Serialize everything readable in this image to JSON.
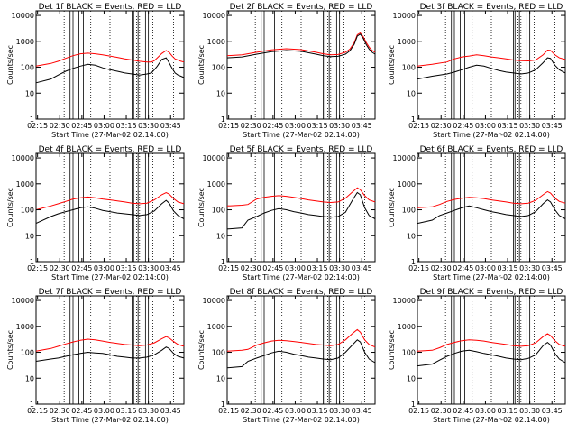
{
  "figure": {
    "ylabel": "Counts/sec",
    "xlabel": "Start Time (27-Mar-02 02:14:00)",
    "xtick_labels": [
      "02:15",
      "02:30",
      "02:45",
      "03:00",
      "03:15",
      "03:30",
      "03:45"
    ],
    "ytick_labels": [
      "1",
      "10",
      "100",
      "1000",
      "10000"
    ],
    "event_color": "#000000",
    "lld_color": "#ff0000"
  },
  "chart_data": [
    {
      "type": "line",
      "detector": "1f",
      "title": "Det 1f BLACK = Events, RED = LLD",
      "ylim": [
        1,
        15000
      ],
      "yscale": "log",
      "xlim_minutes_after_start": [
        0,
        100
      ],
      "x": [
        0,
        10,
        15,
        20,
        25,
        30,
        35,
        40,
        45,
        50,
        55,
        60,
        65,
        70,
        75,
        78,
        80,
        82,
        85,
        88,
        90,
        92,
        94,
        96,
        98,
        100
      ],
      "series": [
        {
          "name": "LLD",
          "color": "#ff0000",
          "values": [
            110,
            140,
            170,
            220,
            280,
            330,
            350,
            330,
            300,
            270,
            240,
            210,
            190,
            170,
            160,
            160,
            180,
            230,
            340,
            440,
            380,
            270,
            210,
            190,
            170,
            160
          ]
        },
        {
          "name": "Events",
          "color": "#000000",
          "values": [
            25,
            35,
            50,
            70,
            90,
            110,
            130,
            120,
            95,
            80,
            70,
            60,
            55,
            50,
            55,
            60,
            80,
            110,
            200,
            230,
            150,
            90,
            60,
            50,
            45,
            40
          ]
        }
      ],
      "dotted_lines_minutes": [
        19,
        37,
        50,
        68,
        70,
        79,
        93
      ],
      "solid_lines_minutes": [
        23,
        25,
        29,
        32,
        65,
        66,
        69,
        74,
        76
      ]
    },
    {
      "type": "line",
      "detector": "2f",
      "title": "Det 2f BLACK = Events, RED = LLD",
      "ylim": [
        1,
        15000
      ],
      "yscale": "log",
      "xlim_minutes_after_start": [
        0,
        100
      ],
      "x": [
        0,
        10,
        20,
        30,
        40,
        50,
        60,
        65,
        70,
        75,
        80,
        83,
        86,
        88,
        90,
        92,
        94,
        96,
        98,
        100
      ],
      "series": [
        {
          "name": "LLD",
          "color": "#ff0000",
          "values": [
            280,
            300,
            380,
            470,
            520,
            480,
            380,
            330,
            300,
            310,
            380,
            500,
            900,
            1800,
            2100,
            1500,
            900,
            600,
            450,
            380
          ]
        },
        {
          "name": "Events",
          "color": "#000000",
          "values": [
            230,
            250,
            320,
            400,
            440,
            410,
            320,
            280,
            255,
            265,
            320,
            430,
            780,
            1600,
            1900,
            1300,
            750,
            500,
            380,
            320
          ]
        }
      ],
      "dotted_lines_minutes": [
        19,
        37,
        50,
        68,
        70,
        79,
        93
      ],
      "solid_lines_minutes": [
        23,
        25,
        29,
        32,
        65,
        66,
        69,
        74,
        76
      ]
    },
    {
      "type": "line",
      "detector": "3f",
      "title": "Det 3f BLACK = Events, RED = LLD",
      "ylim": [
        1,
        15000
      ],
      "yscale": "log",
      "xlim_minutes_after_start": [
        0,
        100
      ],
      "x": [
        0,
        10,
        20,
        25,
        30,
        35,
        40,
        45,
        50,
        55,
        60,
        65,
        70,
        75,
        80,
        85,
        88,
        90,
        93,
        96,
        100
      ],
      "series": [
        {
          "name": "LLD",
          "color": "#ff0000",
          "values": [
            110,
            130,
            160,
            210,
            250,
            270,
            300,
            280,
            250,
            230,
            210,
            190,
            180,
            175,
            190,
            300,
            460,
            450,
            300,
            230,
            200
          ]
        },
        {
          "name": "Events",
          "color": "#000000",
          "values": [
            35,
            45,
            55,
            65,
            80,
            100,
            120,
            110,
            90,
            75,
            65,
            60,
            55,
            60,
            80,
            150,
            230,
            220,
            120,
            80,
            60
          ]
        }
      ],
      "dotted_lines_minutes": [
        19,
        37,
        50,
        68,
        70,
        79,
        93
      ],
      "solid_lines_minutes": [
        23,
        25,
        29,
        32,
        65,
        66,
        69,
        74,
        76
      ]
    },
    {
      "type": "line",
      "detector": "4f",
      "title": "Det 4f BLACK = Events, RED = LLD",
      "ylim": [
        1,
        15000
      ],
      "yscale": "log",
      "xlim_minutes_after_start": [
        0,
        100
      ],
      "x": [
        0,
        10,
        15,
        20,
        25,
        30,
        35,
        40,
        45,
        50,
        55,
        60,
        65,
        70,
        75,
        80,
        85,
        88,
        90,
        93,
        96,
        100
      ],
      "series": [
        {
          "name": "LLD",
          "color": "#ff0000",
          "values": [
            100,
            140,
            170,
            210,
            260,
            290,
            310,
            290,
            260,
            240,
            220,
            200,
            180,
            170,
            180,
            240,
            380,
            460,
            400,
            270,
            200,
            170
          ]
        },
        {
          "name": "Events",
          "color": "#000000",
          "values": [
            30,
            55,
            70,
            85,
            100,
            120,
            130,
            115,
            95,
            85,
            75,
            70,
            65,
            60,
            65,
            90,
            170,
            230,
            180,
            90,
            60,
            45
          ]
        }
      ],
      "dotted_lines_minutes": [
        19,
        37,
        50,
        68,
        70,
        79,
        93
      ],
      "solid_lines_minutes": [
        23,
        25,
        29,
        32,
        65,
        66,
        69,
        74,
        76
      ]
    },
    {
      "type": "line",
      "detector": "5f",
      "title": "Det 5f BLACK = Events, RED = LLD",
      "ylim": [
        1,
        15000
      ],
      "yscale": "log",
      "xlim_minutes_after_start": [
        0,
        100
      ],
      "x": [
        0,
        10,
        14,
        20,
        25,
        30,
        35,
        40,
        45,
        50,
        55,
        60,
        65,
        70,
        75,
        80,
        85,
        88,
        90,
        93,
        96,
        100
      ],
      "series": [
        {
          "name": "LLD",
          "color": "#ff0000",
          "values": [
            140,
            150,
            160,
            260,
            300,
            330,
            350,
            330,
            300,
            270,
            240,
            220,
            200,
            190,
            200,
            280,
            500,
            700,
            600,
            350,
            240,
            200
          ]
        },
        {
          "name": "Events",
          "color": "#000000",
          "values": [
            18,
            20,
            40,
            55,
            75,
            95,
            110,
            100,
            85,
            75,
            65,
            60,
            55,
            52,
            55,
            80,
            250,
            460,
            380,
            120,
            60,
            45
          ]
        }
      ],
      "dotted_lines_minutes": [
        19,
        37,
        50,
        68,
        70,
        79,
        93
      ],
      "solid_lines_minutes": [
        23,
        25,
        29,
        32,
        65,
        66,
        69,
        74,
        76
      ]
    },
    {
      "type": "line",
      "detector": "6f",
      "title": "Det 6f BLACK = Events, RED = LLD",
      "ylim": [
        1,
        15000
      ],
      "yscale": "log",
      "xlim_minutes_after_start": [
        0,
        100
      ],
      "x": [
        0,
        10,
        15,
        20,
        25,
        30,
        35,
        40,
        45,
        50,
        55,
        60,
        65,
        70,
        75,
        80,
        85,
        88,
        90,
        93,
        96,
        100
      ],
      "series": [
        {
          "name": "LLD",
          "color": "#ff0000",
          "values": [
            120,
            130,
            160,
            210,
            250,
            280,
            300,
            290,
            270,
            240,
            220,
            200,
            180,
            170,
            180,
            230,
            380,
            500,
            440,
            280,
            210,
            180
          ]
        },
        {
          "name": "Events",
          "color": "#000000",
          "values": [
            30,
            40,
            60,
            75,
            95,
            120,
            140,
            120,
            100,
            85,
            75,
            65,
            60,
            55,
            60,
            85,
            170,
            240,
            200,
            100,
            60,
            45
          ]
        }
      ],
      "dotted_lines_minutes": [
        19,
        37,
        50,
        68,
        70,
        79,
        93
      ],
      "solid_lines_minutes": [
        23,
        25,
        29,
        32,
        65,
        66,
        69,
        74,
        76
      ]
    },
    {
      "type": "line",
      "detector": "7f",
      "title": "Det 7f BLACK = Events, RED = LLD",
      "ylim": [
        1,
        15000
      ],
      "yscale": "log",
      "xlim_minutes_after_start": [
        0,
        100
      ],
      "x": [
        0,
        10,
        15,
        20,
        25,
        30,
        35,
        40,
        45,
        50,
        55,
        60,
        65,
        70,
        75,
        80,
        85,
        88,
        90,
        93,
        96,
        100
      ],
      "series": [
        {
          "name": "LLD",
          "color": "#ff0000",
          "values": [
            110,
            140,
            170,
            210,
            250,
            290,
            320,
            300,
            270,
            240,
            220,
            200,
            190,
            180,
            190,
            230,
            330,
            400,
            360,
            260,
            200,
            170
          ]
        },
        {
          "name": "Events",
          "color": "#000000",
          "values": [
            45,
            55,
            60,
            70,
            80,
            90,
            100,
            95,
            90,
            80,
            70,
            65,
            60,
            60,
            65,
            80,
            120,
            160,
            140,
            90,
            70,
            60
          ]
        }
      ],
      "dotted_lines_minutes": [
        19,
        37,
        50,
        68,
        70,
        79,
        93
      ],
      "solid_lines_minutes": [
        23,
        25,
        29,
        32,
        65,
        66,
        69,
        74,
        76
      ]
    },
    {
      "type": "line",
      "detector": "8f",
      "title": "Det 8f BLACK = Events, RED = LLD",
      "ylim": [
        1,
        15000
      ],
      "yscale": "log",
      "xlim_minutes_after_start": [
        0,
        100
      ],
      "x": [
        0,
        10,
        14,
        20,
        25,
        30,
        35,
        40,
        45,
        50,
        55,
        60,
        65,
        70,
        75,
        80,
        85,
        88,
        90,
        93,
        96,
        100
      ],
      "series": [
        {
          "name": "LLD",
          "color": "#ff0000",
          "values": [
            110,
            120,
            130,
            190,
            230,
            270,
            290,
            280,
            260,
            240,
            220,
            200,
            190,
            180,
            200,
            300,
            550,
            750,
            600,
            300,
            200,
            160
          ]
        },
        {
          "name": "Events",
          "color": "#000000",
          "values": [
            25,
            28,
            45,
            60,
            75,
            95,
            110,
            100,
            85,
            75,
            65,
            60,
            55,
            52,
            60,
            100,
            200,
            300,
            250,
            100,
            55,
            40
          ]
        }
      ],
      "dotted_lines_minutes": [
        19,
        37,
        50,
        68,
        70,
        79,
        93
      ],
      "solid_lines_minutes": [
        23,
        25,
        29,
        32,
        65,
        66,
        69,
        74,
        76
      ]
    },
    {
      "type": "line",
      "detector": "9f",
      "title": "Det 9f BLACK = Events, RED = LLD",
      "ylim": [
        1,
        15000
      ],
      "yscale": "log",
      "xlim_minutes_after_start": [
        0,
        100
      ],
      "x": [
        0,
        10,
        15,
        20,
        25,
        30,
        35,
        40,
        45,
        50,
        55,
        60,
        65,
        70,
        75,
        80,
        85,
        88,
        90,
        93,
        96,
        100
      ],
      "series": [
        {
          "name": "LLD",
          "color": "#ff0000",
          "values": [
            110,
            120,
            150,
            200,
            240,
            280,
            300,
            290,
            270,
            240,
            220,
            200,
            180,
            170,
            180,
            230,
            400,
            520,
            440,
            280,
            200,
            170
          ]
        },
        {
          "name": "Events",
          "color": "#000000",
          "values": [
            30,
            35,
            50,
            70,
            90,
            110,
            120,
            105,
            90,
            80,
            70,
            60,
            55,
            52,
            58,
            80,
            180,
            240,
            190,
            90,
            55,
            40
          ]
        }
      ],
      "dotted_lines_minutes": [
        19,
        37,
        50,
        68,
        70,
        79,
        93
      ],
      "solid_lines_minutes": [
        23,
        25,
        29,
        32,
        65,
        66,
        69,
        74,
        76
      ]
    }
  ]
}
